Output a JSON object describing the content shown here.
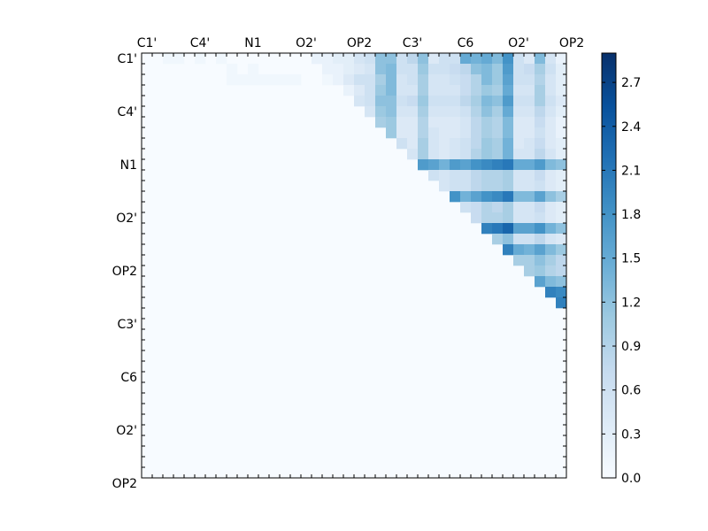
{
  "chart_data": {
    "type": "heatmap",
    "title": "",
    "x_tick_labels": [
      "C1'",
      "C4'",
      "N1",
      "O2'",
      "OP2",
      "C3'",
      "C6",
      "O2'",
      "OP2"
    ],
    "y_tick_labels": [
      "C1'",
      "C4'",
      "N1",
      "O2'",
      "OP2",
      "C3'",
      "C6",
      "O2'",
      "OP2"
    ],
    "grid_size": 40,
    "vmin": 0.0,
    "vmax": 2.9,
    "colorbar": {
      "tick_labels": [
        "0.0",
        "0.3",
        "0.6",
        "0.9",
        "1.2",
        "1.5",
        "1.8",
        "2.1",
        "2.4",
        "2.7"
      ],
      "tick_values": [
        0.0,
        0.3,
        0.6,
        0.9,
        1.2,
        1.5,
        1.8,
        2.1,
        2.4,
        2.7
      ]
    },
    "colormap": "Blues",
    "rows": [
      [
        0,
        0,
        0.1,
        0.1,
        0,
        0.1,
        0,
        0.1,
        0,
        0,
        0,
        0,
        0,
        0,
        0,
        0,
        0.2,
        0.2,
        0.3,
        0.3,
        0.5,
        0.6,
        1.2,
        1.2,
        0.6,
        0.8,
        1.2,
        0.4,
        0.6,
        0.6,
        1.5,
        1.4,
        1.5,
        1.3,
        1.8,
        0.6,
        0.4,
        1.3,
        0.5,
        0.2
      ],
      [
        0,
        0,
        0,
        0,
        0,
        0,
        0,
        0,
        0.1,
        0,
        0.1,
        0,
        0,
        0,
        0,
        0,
        0,
        0.2,
        0.2,
        0.3,
        0.4,
        0.5,
        1.2,
        1.3,
        0.6,
        0.6,
        1.1,
        0.6,
        0.6,
        0.7,
        0.8,
        1.2,
        1.3,
        1.1,
        1.7,
        0.6,
        0.7,
        1.0,
        0.6,
        0.3
      ],
      [
        0,
        0,
        0,
        0,
        0,
        0,
        0,
        0,
        0.1,
        0.1,
        0.1,
        0.1,
        0.1,
        0.1,
        0.1,
        0,
        0,
        0.1,
        0.2,
        0.4,
        0.6,
        0.6,
        1.0,
        1.3,
        0.5,
        0.6,
        1.0,
        0.5,
        0.5,
        0.6,
        0.7,
        0.9,
        1.3,
        1.1,
        1.6,
        0.6,
        0.6,
        0.9,
        0.5,
        0.3
      ],
      [
        0,
        0,
        0,
        0,
        0,
        0,
        0,
        0,
        0,
        0,
        0,
        0,
        0,
        0,
        0,
        0,
        0,
        0,
        0,
        0.2,
        0.4,
        0.6,
        1.1,
        1.3,
        0.5,
        0.5,
        1.0,
        0.5,
        0.5,
        0.5,
        0.7,
        0.9,
        1.1,
        1.0,
        1.5,
        0.5,
        0.5,
        1.0,
        0.5,
        0.3
      ],
      [
        0,
        0,
        0,
        0,
        0,
        0,
        0,
        0,
        0,
        0,
        0,
        0,
        0,
        0,
        0,
        0,
        0,
        0,
        0,
        0,
        0.5,
        0.6,
        1.2,
        1.2,
        0.6,
        0.7,
        1.1,
        0.6,
        0.6,
        0.6,
        0.8,
        1.0,
        1.3,
        1.2,
        1.7,
        0.6,
        0.6,
        1.0,
        0.6,
        0.4
      ],
      [
        0,
        0,
        0,
        0,
        0,
        0,
        0,
        0,
        0,
        0,
        0,
        0,
        0,
        0,
        0,
        0,
        0,
        0,
        0,
        0,
        0,
        0.5,
        1.1,
        1.2,
        0.5,
        0.5,
        1.0,
        0.5,
        0.5,
        0.5,
        0.6,
        0.9,
        1.2,
        1.0,
        1.5,
        0.5,
        0.5,
        0.8,
        0.5,
        0.3
      ],
      [
        0,
        0,
        0,
        0,
        0,
        0,
        0,
        0,
        0,
        0,
        0,
        0,
        0,
        0,
        0,
        0,
        0,
        0,
        0,
        0,
        0,
        0,
        1.0,
        1.1,
        0.4,
        0.4,
        0.9,
        0.4,
        0.4,
        0.4,
        0.5,
        0.8,
        1.0,
        0.9,
        1.3,
        0.4,
        0.4,
        0.7,
        0.4,
        0.2
      ],
      [
        0,
        0,
        0,
        0,
        0,
        0,
        0,
        0,
        0,
        0,
        0,
        0,
        0,
        0,
        0,
        0,
        0,
        0,
        0,
        0,
        0,
        0,
        0,
        1.1,
        0.4,
        0.4,
        0.9,
        0.5,
        0.4,
        0.4,
        0.5,
        0.8,
        1.0,
        0.9,
        1.3,
        0.4,
        0.4,
        0.6,
        0.4,
        0.2
      ],
      [
        0,
        0,
        0,
        0,
        0,
        0,
        0,
        0,
        0,
        0,
        0,
        0,
        0,
        0,
        0,
        0,
        0,
        0,
        0,
        0,
        0,
        0,
        0,
        0,
        0.6,
        0.4,
        1.0,
        0.5,
        0.4,
        0.5,
        0.6,
        0.8,
        1.1,
        1.0,
        1.4,
        0.4,
        0.5,
        0.7,
        0.4,
        0.3
      ],
      [
        0,
        0,
        0,
        0,
        0,
        0,
        0,
        0,
        0,
        0,
        0,
        0,
        0,
        0,
        0,
        0,
        0,
        0,
        0,
        0,
        0,
        0,
        0,
        0,
        0,
        0.5,
        1.0,
        0.5,
        0.4,
        0.5,
        0.6,
        0.9,
        1.1,
        1.0,
        1.4,
        0.5,
        0.5,
        0.8,
        0.5,
        0.3
      ],
      [
        0,
        0,
        0,
        0,
        0,
        0,
        0,
        0,
        0,
        0,
        0,
        0,
        0,
        0,
        0,
        0,
        0,
        0,
        0,
        0,
        0,
        0,
        0,
        0,
        0,
        0,
        1.7,
        1.6,
        1.4,
        1.7,
        1.6,
        1.8,
        1.9,
        2.0,
        2.1,
        1.5,
        1.5,
        1.7,
        1.3,
        1.2
      ],
      [
        0,
        0,
        0,
        0,
        0,
        0,
        0,
        0,
        0,
        0,
        0,
        0,
        0,
        0,
        0,
        0,
        0,
        0,
        0,
        0,
        0,
        0,
        0,
        0,
        0,
        0,
        0,
        0.6,
        0.5,
        0.6,
        0.6,
        0.8,
        0.9,
        0.9,
        1.0,
        0.5,
        0.5,
        0.7,
        0.4,
        0.3
      ],
      [
        0,
        0,
        0,
        0,
        0,
        0,
        0,
        0,
        0,
        0,
        0,
        0,
        0,
        0,
        0,
        0,
        0,
        0,
        0,
        0,
        0,
        0,
        0,
        0,
        0,
        0,
        0,
        0,
        0.5,
        0.6,
        0.6,
        0.8,
        0.9,
        0.9,
        1.0,
        0.5,
        0.5,
        0.6,
        0.4,
        0.3
      ],
      [
        0,
        0,
        0,
        0,
        0,
        0,
        0,
        0,
        0,
        0,
        0,
        0,
        0,
        0,
        0,
        0,
        0,
        0,
        0,
        0,
        0,
        0,
        0,
        0,
        0,
        0,
        0,
        0,
        0,
        1.8,
        1.4,
        1.6,
        1.8,
        1.9,
        2.1,
        1.3,
        1.3,
        1.6,
        1.2,
        1.0
      ],
      [
        0,
        0,
        0,
        0,
        0,
        0,
        0,
        0,
        0,
        0,
        0,
        0,
        0,
        0,
        0,
        0,
        0,
        0,
        0,
        0,
        0,
        0,
        0,
        0,
        0,
        0,
        0,
        0,
        0,
        0,
        0.6,
        0.7,
        0.9,
        0.8,
        1.0,
        0.5,
        0.5,
        0.7,
        0.4,
        0.3
      ],
      [
        0,
        0,
        0,
        0,
        0,
        0,
        0,
        0,
        0,
        0,
        0,
        0,
        0,
        0,
        0,
        0,
        0,
        0,
        0,
        0,
        0,
        0,
        0,
        0,
        0,
        0,
        0,
        0,
        0,
        0,
        0,
        0.7,
        0.9,
        0.9,
        1.0,
        0.5,
        0.5,
        0.6,
        0.4,
        0.3
      ],
      [
        0,
        0,
        0,
        0,
        0,
        0,
        0,
        0,
        0,
        0,
        0,
        0,
        0,
        0,
        0,
        0,
        0,
        0,
        0,
        0,
        0,
        0,
        0,
        0,
        0,
        0,
        0,
        0,
        0,
        0,
        0,
        0,
        2.0,
        2.1,
        2.3,
        1.6,
        1.6,
        1.8,
        1.4,
        1.2
      ],
      [
        0,
        0,
        0,
        0,
        0,
        0,
        0,
        0,
        0,
        0,
        0,
        0,
        0,
        0,
        0,
        0,
        0,
        0,
        0,
        0,
        0,
        0,
        0,
        0,
        0,
        0,
        0,
        0,
        0,
        0,
        0,
        0,
        0,
        1.0,
        1.2,
        0.6,
        0.6,
        0.8,
        0.5,
        0.4
      ],
      [
        0,
        0,
        0,
        0,
        0,
        0,
        0,
        0,
        0,
        0,
        0,
        0,
        0,
        0,
        0,
        0,
        0,
        0,
        0,
        0,
        0,
        0,
        0,
        0,
        0,
        0,
        0,
        0,
        0,
        0,
        0,
        0,
        0,
        0,
        2.0,
        1.5,
        1.4,
        1.6,
        1.3,
        1.1
      ],
      [
        0,
        0,
        0,
        0,
        0,
        0,
        0,
        0,
        0,
        0,
        0,
        0,
        0,
        0,
        0,
        0,
        0,
        0,
        0,
        0,
        0,
        0,
        0,
        0,
        0,
        0,
        0,
        0,
        0,
        0,
        0,
        0,
        0,
        0,
        0,
        1.0,
        1.0,
        1.2,
        1.0,
        0.8
      ],
      [
        0,
        0,
        0,
        0,
        0,
        0,
        0,
        0,
        0,
        0,
        0,
        0,
        0,
        0,
        0,
        0,
        0,
        0,
        0,
        0,
        0,
        0,
        0,
        0,
        0,
        0,
        0,
        0,
        0,
        0,
        0,
        0,
        0,
        0,
        0,
        0,
        1.0,
        1.1,
        0.9,
        0.8
      ],
      [
        0,
        0,
        0,
        0,
        0,
        0,
        0,
        0,
        0,
        0,
        0,
        0,
        0,
        0,
        0,
        0,
        0,
        0,
        0,
        0,
        0,
        0,
        0,
        0,
        0,
        0,
        0,
        0,
        0,
        0,
        0,
        0,
        0,
        0,
        0,
        0,
        0,
        1.6,
        1.3,
        1.2
      ],
      [
        0,
        0,
        0,
        0,
        0,
        0,
        0,
        0,
        0,
        0,
        0,
        0,
        0,
        0,
        0,
        0,
        0,
        0,
        0,
        0,
        0,
        0,
        0,
        0,
        0,
        0,
        0,
        0,
        0,
        0,
        0,
        0,
        0,
        0,
        0,
        0,
        0,
        0,
        2.0,
        1.9
      ],
      [
        0,
        0,
        0,
        0,
        0,
        0,
        0,
        0,
        0,
        0,
        0,
        0,
        0,
        0,
        0,
        0,
        0,
        0,
        0,
        0,
        0,
        0,
        0,
        0,
        0,
        0,
        0,
        0,
        0,
        0,
        0,
        0,
        0,
        0,
        0,
        0,
        0,
        0,
        0,
        2.0
      ],
      [
        0,
        0,
        0,
        0,
        0,
        0,
        0,
        0,
        0,
        0,
        0,
        0,
        0,
        0,
        0,
        0,
        0,
        0,
        0,
        0,
        0,
        0,
        0,
        0,
        0,
        0,
        0,
        0,
        0,
        0,
        0,
        0,
        0,
        0,
        0,
        0,
        0,
        0,
        0,
        0
      ],
      [
        0,
        0,
        0,
        0,
        0,
        0,
        0,
        0,
        0,
        0,
        0,
        0,
        0,
        0,
        0,
        0,
        0,
        0,
        0,
        0,
        0,
        0,
        0,
        0,
        0,
        0,
        0,
        0,
        0,
        0,
        0,
        0,
        0,
        0,
        0,
        0,
        0,
        0,
        0,
        0
      ],
      [
        0,
        0,
        0,
        0,
        0,
        0,
        0,
        0,
        0,
        0,
        0,
        0,
        0,
        0,
        0,
        0,
        0,
        0,
        0,
        0,
        0,
        0,
        0,
        0,
        0,
        0,
        0,
        0,
        0,
        0,
        0,
        0,
        0,
        0,
        0,
        0,
        0,
        0,
        0,
        0
      ],
      [
        0,
        0,
        0,
        0,
        0,
        0,
        0,
        0,
        0,
        0,
        0,
        0,
        0,
        0,
        0,
        0,
        0,
        0,
        0,
        0,
        0,
        0,
        0,
        0,
        0,
        0,
        0,
        0,
        0,
        0,
        0,
        0,
        0,
        0,
        0,
        0,
        0,
        0,
        0,
        0
      ],
      [
        0,
        0,
        0,
        0,
        0,
        0,
        0,
        0,
        0,
        0,
        0,
        0,
        0,
        0,
        0,
        0,
        0,
        0,
        0,
        0,
        0,
        0,
        0,
        0,
        0,
        0,
        0,
        0,
        0,
        0,
        0,
        0,
        0,
        0,
        0,
        0,
        0,
        0,
        0,
        0
      ],
      [
        0,
        0,
        0,
        0,
        0,
        0,
        0,
        0,
        0,
        0,
        0,
        0,
        0,
        0,
        0,
        0,
        0,
        0,
        0,
        0,
        0,
        0,
        0,
        0,
        0,
        0,
        0,
        0,
        0,
        0,
        0,
        0,
        0,
        0,
        0,
        0,
        0,
        0,
        0,
        0
      ],
      [
        0,
        0,
        0,
        0,
        0,
        0,
        0,
        0,
        0,
        0,
        0,
        0,
        0,
        0,
        0,
        0,
        0,
        0,
        0,
        0,
        0,
        0,
        0,
        0,
        0,
        0,
        0,
        0,
        0,
        0,
        0,
        0,
        0,
        0,
        0,
        0,
        0,
        0,
        0,
        0
      ],
      [
        0,
        0,
        0,
        0,
        0,
        0,
        0,
        0,
        0,
        0,
        0,
        0,
        0,
        0,
        0,
        0,
        0,
        0,
        0,
        0,
        0,
        0,
        0,
        0,
        0,
        0,
        0,
        0,
        0,
        0,
        0,
        0,
        0,
        0,
        0,
        0,
        0,
        0,
        0,
        0
      ],
      [
        0,
        0,
        0,
        0,
        0,
        0,
        0,
        0,
        0,
        0,
        0,
        0,
        0,
        0,
        0,
        0,
        0,
        0,
        0,
        0,
        0,
        0,
        0,
        0,
        0,
        0,
        0,
        0,
        0,
        0,
        0,
        0,
        0,
        0,
        0,
        0,
        0,
        0,
        0,
        0
      ],
      [
        0,
        0,
        0,
        0,
        0,
        0,
        0,
        0,
        0,
        0,
        0,
        0,
        0,
        0,
        0,
        0,
        0,
        0,
        0,
        0,
        0,
        0,
        0,
        0,
        0,
        0,
        0,
        0,
        0,
        0,
        0,
        0,
        0,
        0,
        0,
        0,
        0,
        0,
        0,
        0
      ],
      [
        0,
        0,
        0,
        0,
        0,
        0,
        0,
        0,
        0,
        0,
        0,
        0,
        0,
        0,
        0,
        0,
        0,
        0,
        0,
        0,
        0,
        0,
        0,
        0,
        0,
        0,
        0,
        0,
        0,
        0,
        0,
        0,
        0,
        0,
        0,
        0,
        0,
        0,
        0,
        0
      ],
      [
        0,
        0,
        0,
        0,
        0,
        0,
        0,
        0,
        0,
        0,
        0,
        0,
        0,
        0,
        0,
        0,
        0,
        0,
        0,
        0,
        0,
        0,
        0,
        0,
        0,
        0,
        0,
        0,
        0,
        0,
        0,
        0,
        0,
        0,
        0,
        0,
        0,
        0,
        0,
        0
      ],
      [
        0,
        0,
        0,
        0,
        0,
        0,
        0,
        0,
        0,
        0,
        0,
        0,
        0,
        0,
        0,
        0,
        0,
        0,
        0,
        0,
        0,
        0,
        0,
        0,
        0,
        0,
        0,
        0,
        0,
        0,
        0,
        0,
        0,
        0,
        0,
        0,
        0,
        0,
        0,
        0
      ],
      [
        0,
        0,
        0,
        0,
        0,
        0,
        0,
        0,
        0,
        0,
        0,
        0,
        0,
        0,
        0,
        0,
        0,
        0,
        0,
        0,
        0,
        0,
        0,
        0,
        0,
        0,
        0,
        0,
        0,
        0,
        0,
        0,
        0,
        0,
        0,
        0,
        0,
        0,
        0,
        0
      ],
      [
        0,
        0,
        0,
        0,
        0,
        0,
        0,
        0,
        0,
        0,
        0,
        0,
        0,
        0,
        0,
        0,
        0,
        0,
        0,
        0,
        0,
        0,
        0,
        0,
        0,
        0,
        0,
        0,
        0,
        0,
        0,
        0,
        0,
        0,
        0,
        0,
        0,
        0,
        0,
        0
      ],
      [
        0,
        0,
        0,
        0,
        0,
        0,
        0,
        0,
        0,
        0,
        0,
        0,
        0,
        0,
        0,
        0,
        0,
        0,
        0,
        0,
        0,
        0,
        0,
        0,
        0,
        0,
        0,
        0,
        0,
        0,
        0,
        0,
        0,
        0,
        0,
        0,
        0,
        0,
        0,
        0
      ]
    ]
  }
}
